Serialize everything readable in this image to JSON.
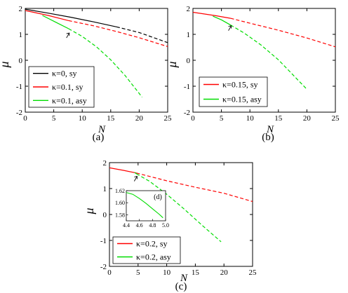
{
  "chart_data": [
    {
      "id": "a",
      "type": "line",
      "caption": "(a)",
      "xlabel": "N",
      "ylabel": "μ",
      "xlim": [
        0,
        25
      ],
      "ylim": [
        -2,
        2
      ],
      "xticks": [
        0,
        5,
        10,
        15,
        20,
        25
      ],
      "yticks": [
        -2,
        -1,
        0,
        1,
        2
      ],
      "legend_position": "bottom-left",
      "arrow": {
        "x": 7.6,
        "y": 1.08
      },
      "series": [
        {
          "name": "κ=0, sy",
          "color": "#000000",
          "solid": [
            [
              0,
              1.97
            ],
            [
              4,
              1.82
            ],
            [
              8,
              1.66
            ],
            [
              12,
              1.48
            ],
            [
              16,
              1.29
            ]
          ],
          "dashed": [
            [
              16,
              1.29
            ],
            [
              20,
              1.07
            ],
            [
              25,
              0.68
            ]
          ]
        },
        {
          "name": "κ=0.1, sy",
          "color": "#ff0000",
          "solid": [
            [
              0,
              1.92
            ],
            [
              4,
              1.73
            ],
            [
              7.6,
              1.53
            ]
          ],
          "dashed": [
            [
              7.6,
              1.53
            ],
            [
              12,
              1.33
            ],
            [
              16,
              1.11
            ],
            [
              20,
              0.87
            ],
            [
              25,
              0.53
            ]
          ]
        },
        {
          "name": "κ=0.1, asy",
          "color": "#00dd00",
          "solid": [
            [
              3,
              1.73
            ],
            [
              5.5,
              1.45
            ],
            [
              7.6,
              1.22
            ]
          ],
          "dashed": [
            [
              7.6,
              1.22
            ],
            [
              10,
              0.92
            ],
            [
              12.5,
              0.52
            ],
            [
              15,
              0.02
            ],
            [
              17.5,
              -0.58
            ],
            [
              20.5,
              -1.42
            ]
          ]
        }
      ]
    },
    {
      "id": "b",
      "type": "line",
      "caption": "(b)",
      "xlabel": "N",
      "ylabel": "μ",
      "xlim": [
        0,
        25
      ],
      "ylim": [
        -2,
        2
      ],
      "xticks": [
        0,
        5,
        10,
        15,
        20,
        25
      ],
      "yticks": [
        -2,
        -1,
        0,
        1,
        2
      ],
      "legend_position": "bottom-left",
      "arrow": {
        "x": 6.6,
        "y": 1.36
      },
      "series": [
        {
          "name": "κ=0.15, sy",
          "color": "#ff0000",
          "solid": [
            [
              0,
              1.85
            ],
            [
              4,
              1.72
            ],
            [
              6.6,
              1.62
            ]
          ],
          "dashed": [
            [
              6.6,
              1.62
            ],
            [
              10,
              1.43
            ],
            [
              15,
              1.16
            ],
            [
              20,
              0.86
            ],
            [
              25,
              0.52
            ]
          ]
        },
        {
          "name": "κ=0.15, asy",
          "color": "#00dd00",
          "solid": [
            [
              3.5,
              1.7
            ],
            [
              5,
              1.56
            ],
            [
              6.6,
              1.36
            ]
          ],
          "dashed": [
            [
              6.6,
              1.36
            ],
            [
              9,
              1.05
            ],
            [
              12,
              0.58
            ],
            [
              15,
              0.02
            ],
            [
              17.5,
              -0.55
            ],
            [
              20,
              -1.12
            ]
          ]
        }
      ]
    },
    {
      "id": "c",
      "type": "line",
      "caption": "(c)",
      "xlabel": "N",
      "ylabel": "μ",
      "xlim": [
        0,
        25
      ],
      "ylim": [
        -2,
        2
      ],
      "xticks": [
        0,
        5,
        10,
        15,
        20,
        25
      ],
      "yticks": [
        -2,
        -1,
        0,
        1,
        2
      ],
      "legend_position": "bottom-left",
      "arrow": {
        "x": 4.7,
        "y": 1.5
      },
      "series": [
        {
          "name": "κ=0.2, sy",
          "color": "#ff0000",
          "solid": [
            [
              0,
              1.8
            ],
            [
              2.5,
              1.7
            ],
            [
              4.7,
              1.6
            ]
          ],
          "dashed": [
            [
              4.7,
              1.6
            ],
            [
              10,
              1.3
            ],
            [
              15,
              1.05
            ],
            [
              20,
              0.82
            ],
            [
              25,
              0.5
            ]
          ]
        },
        {
          "name": "κ=0.2, asy",
          "color": "#00dd00",
          "solid": [
            [
              4.4,
              1.62
            ],
            [
              4.7,
              1.57
            ]
          ],
          "dashed": [
            [
              4.7,
              1.57
            ],
            [
              7,
              1.28
            ],
            [
              10,
              0.78
            ],
            [
              13,
              0.22
            ],
            [
              16,
              -0.38
            ],
            [
              19.5,
              -1.05
            ]
          ]
        }
      ],
      "inset": {
        "label": "(d)",
        "xlim": [
          4.4,
          5.0
        ],
        "ylim": [
          1.57,
          1.62
        ],
        "xticks": [
          4.4,
          4.6,
          4.8,
          5.0
        ],
        "xtick_labels": [
          "4.4",
          "4.6",
          "4.8",
          "5.0"
        ],
        "yticks": [
          1.58,
          1.6,
          1.62
        ],
        "ytick_labels": [
          "1.58",
          "1.60",
          "1.62"
        ],
        "series": [
          {
            "color": "#00dd00",
            "points": [
              [
                4.4,
                1.617
              ],
              [
                4.5,
                1.614
              ],
              [
                4.6,
                1.607
              ],
              [
                4.7,
                1.599
              ],
              [
                4.8,
                1.59
              ],
              [
                4.9,
                1.581
              ],
              [
                4.96,
                1.575
              ]
            ]
          }
        ]
      }
    }
  ]
}
